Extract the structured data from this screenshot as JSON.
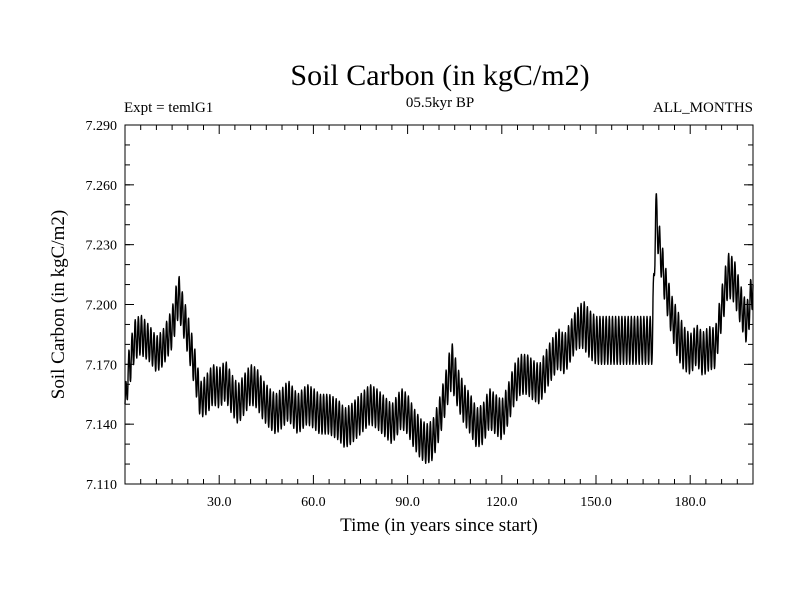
{
  "chart_data": {
    "type": "line",
    "title": "Soil Carbon (in kgC/m2)",
    "subtitle_left": "Expt = temlG1",
    "subtitle_center": "05.5kyr BP",
    "subtitle_right": "ALL_MONTHS",
    "xlabel": "Time (in years since start)",
    "ylabel": "Soil Carbon (in kgC/m2)",
    "xlim": [
      0,
      200
    ],
    "ylim": [
      7.11,
      7.29
    ],
    "x_ticks": [
      30,
      60,
      90,
      120,
      150,
      180
    ],
    "x_tick_labels": [
      "30.0",
      "60.0",
      "90.0",
      "120.0",
      "150.0",
      "180.0"
    ],
    "y_ticks": [
      7.11,
      7.14,
      7.17,
      7.2,
      7.23,
      7.26,
      7.29
    ],
    "y_tick_labels": [
      "7.110",
      "7.140",
      "7.170",
      "7.200",
      "7.230",
      "7.260",
      "7.290"
    ],
    "series": [
      {
        "name": "Soil Carbon",
        "color": "#000000",
        "x": [
          0,
          1,
          3,
          5,
          8,
          10,
          12,
          15,
          17,
          18,
          20,
          22,
          24,
          26,
          28,
          30,
          32,
          34,
          36,
          38,
          40,
          42,
          44,
          46,
          48,
          50,
          52,
          55,
          58,
          60,
          62,
          65,
          68,
          70,
          72,
          75,
          78,
          80,
          82,
          85,
          88,
          90,
          92,
          94,
          96,
          98,
          100,
          102,
          104,
          106,
          108,
          110,
          112,
          114,
          116,
          118,
          120,
          122,
          124,
          126,
          128,
          130,
          132,
          135,
          138,
          140,
          142,
          144,
          146,
          148,
          150,
          155,
          160,
          165,
          167,
          168,
          169,
          170,
          172,
          174,
          176,
          178,
          180,
          182,
          184,
          186,
          188,
          190,
          192,
          194,
          196,
          198,
          200
        ],
        "mean": [
          7.15,
          7.165,
          7.182,
          7.185,
          7.18,
          7.175,
          7.178,
          7.188,
          7.205,
          7.198,
          7.185,
          7.17,
          7.152,
          7.155,
          7.16,
          7.158,
          7.162,
          7.155,
          7.15,
          7.155,
          7.16,
          7.158,
          7.152,
          7.148,
          7.145,
          7.148,
          7.152,
          7.145,
          7.15,
          7.148,
          7.145,
          7.145,
          7.142,
          7.138,
          7.14,
          7.145,
          7.15,
          7.148,
          7.145,
          7.14,
          7.148,
          7.145,
          7.138,
          7.133,
          7.13,
          7.132,
          7.142,
          7.155,
          7.17,
          7.158,
          7.15,
          7.145,
          7.138,
          7.14,
          7.148,
          7.145,
          7.142,
          7.15,
          7.16,
          7.165,
          7.165,
          7.162,
          7.16,
          7.17,
          7.178,
          7.175,
          7.182,
          7.188,
          7.19,
          7.185,
          7.182,
          7.182,
          7.182,
          7.182,
          7.182,
          7.182,
          7.248,
          7.232,
          7.21,
          7.195,
          7.185,
          7.178,
          7.175,
          7.18,
          7.175,
          7.178,
          7.178,
          7.198,
          7.215,
          7.212,
          7.2,
          7.19,
          7.21
        ],
        "amplitude": [
          0.006,
          0.01,
          0.01,
          0.01,
          0.009,
          0.009,
          0.009,
          0.01,
          0.011,
          0.01,
          0.01,
          0.01,
          0.009,
          0.01,
          0.01,
          0.01,
          0.01,
          0.01,
          0.01,
          0.01,
          0.01,
          0.01,
          0.01,
          0.01,
          0.01,
          0.01,
          0.01,
          0.01,
          0.01,
          0.01,
          0.01,
          0.01,
          0.01,
          0.01,
          0.01,
          0.01,
          0.01,
          0.01,
          0.01,
          0.01,
          0.01,
          0.01,
          0.01,
          0.01,
          0.01,
          0.01,
          0.01,
          0.01,
          0.012,
          0.01,
          0.01,
          0.01,
          0.01,
          0.01,
          0.01,
          0.01,
          0.01,
          0.01,
          0.01,
          0.01,
          0.01,
          0.01,
          0.01,
          0.01,
          0.01,
          0.01,
          0.01,
          0.01,
          0.012,
          0.012,
          0.012,
          0.012,
          0.012,
          0.012,
          0.012,
          0.012,
          0.012,
          0.01,
          0.01,
          0.01,
          0.012,
          0.011,
          0.01,
          0.01,
          0.011,
          0.011,
          0.01,
          0.01,
          0.011,
          0.011,
          0.01,
          0.01,
          0.01
        ],
        "cycle_years": 1.0
      }
    ]
  }
}
